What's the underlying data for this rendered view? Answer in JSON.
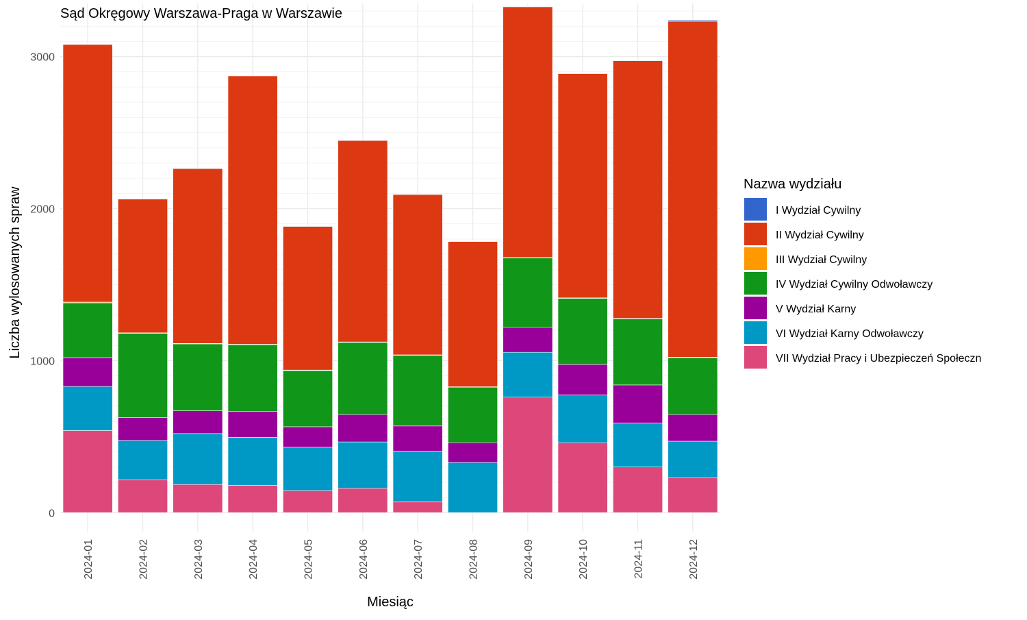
{
  "chart_data": {
    "type": "bar",
    "stacked": true,
    "title": "Sąd Okręgowy Warszawa-Praga w Warszawie",
    "xlabel": "Miesiąc",
    "ylabel": "Liczba wylosowanych spraw",
    "ylim": [
      -125,
      3350
    ],
    "yticks": [
      0,
      1000,
      2000,
      3000
    ],
    "yticklabels": [
      "0",
      "1000",
      "2000",
      "3000"
    ],
    "grid": true,
    "legend_position": "right",
    "legend_title": "Nazwa wydziału",
    "categories": [
      "2024-01",
      "2024-02",
      "2024-03",
      "2024-04",
      "2024-05",
      "2024-06",
      "2024-07",
      "2024-08",
      "2024-09",
      "2024-10",
      "2024-11",
      "2024-12"
    ],
    "series": [
      {
        "name": "VII Wydział Pracy i Ubezpieczeń Społeczn",
        "color": "#DD477A",
        "values": [
          540,
          215,
          185,
          180,
          145,
          160,
          70,
          0,
          760,
          460,
          300,
          230
        ]
      },
      {
        "name": "VI Wydział Karny Odwoławczy",
        "color": "#0099C6",
        "values": [
          290,
          260,
          335,
          315,
          285,
          305,
          335,
          330,
          295,
          315,
          290,
          240
        ]
      },
      {
        "name": "V Wydział Karny",
        "color": "#990099",
        "values": [
          190,
          150,
          150,
          170,
          135,
          180,
          165,
          130,
          165,
          200,
          250,
          175
        ]
      },
      {
        "name": "IV Wydział Cywilny Odwoławczy",
        "color": "#109618",
        "values": [
          360,
          555,
          440,
          440,
          370,
          475,
          465,
          365,
          455,
          435,
          435,
          375
        ]
      },
      {
        "name": "III Wydział Cywilny",
        "color": "#FF9900",
        "values": [
          5,
          3,
          3,
          3,
          3,
          3,
          3,
          3,
          3,
          3,
          3,
          3
        ]
      },
      {
        "name": "II Wydział Cywilny",
        "color": "#DC3912",
        "values": [
          1695,
          880,
          1150,
          1765,
          945,
          1325,
          1055,
          955,
          1650,
          1475,
          1695,
          2210
        ]
      },
      {
        "name": "I Wydział Cywilny",
        "color": "#3366CC",
        "values": [
          3,
          3,
          3,
          3,
          3,
          3,
          3,
          3,
          3,
          3,
          3,
          7
        ]
      }
    ],
    "legend_order": [
      "I Wydział Cywilny",
      "II Wydział Cywilny",
      "III Wydział Cywilny",
      "IV Wydział Cywilny Odwoławczy",
      "V Wydział Karny",
      "VI Wydział Karny Odwoławczy",
      "VII Wydział Pracy i Ubezpieczeń Społeczn"
    ]
  }
}
